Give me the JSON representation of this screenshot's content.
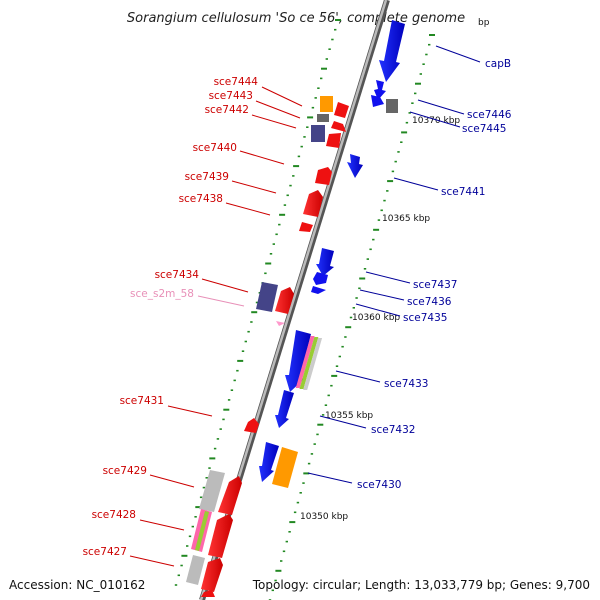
{
  "title": "Sorangium cellulosum 'So ce 56', complete genome",
  "footer": {
    "accession": "Accession: NC_010162",
    "summary": "Topology: circular; Length: 13,033,779 bp; Genes: 9,700"
  },
  "colors": {
    "forward": "#ee1111",
    "reverse": "#1111ee",
    "rna": "#ff99cc",
    "orange": "#ff9900",
    "purple": "#444488",
    "gray": "#666666",
    "light_gray": "#bbbbbb",
    "axis": "#888888",
    "red_label": "#cc0000",
    "blue_label": "#000099",
    "tick": "#228822"
  },
  "ticks": [
    {
      "label": "10370 kbp"
    },
    {
      "label": "10365 kbp"
    },
    {
      "label": "10360 kbp"
    },
    {
      "label": "10355 kbp"
    },
    {
      "label": "10350 kbp"
    },
    {
      "label": "bp"
    }
  ],
  "left_labels": [
    {
      "text": "sce7444"
    },
    {
      "text": "sce7443"
    },
    {
      "text": "sce7442"
    },
    {
      "text": "sce7440"
    },
    {
      "text": "sce7439"
    },
    {
      "text": "sce7438"
    },
    {
      "text": "sce7434"
    },
    {
      "text": "sce_s2m_58"
    },
    {
      "text": "sce7431"
    },
    {
      "text": "sce7429"
    },
    {
      "text": "sce7428"
    },
    {
      "text": "sce7427"
    }
  ],
  "right_labels": [
    {
      "text": "capB"
    },
    {
      "text": "sce7446"
    },
    {
      "text": "sce7445"
    },
    {
      "text": "sce7441"
    },
    {
      "text": "sce7437"
    },
    {
      "text": "sce7436"
    },
    {
      "text": "sce7435"
    },
    {
      "text": "sce7433"
    },
    {
      "text": "sce7432"
    },
    {
      "text": "sce7430"
    }
  ]
}
